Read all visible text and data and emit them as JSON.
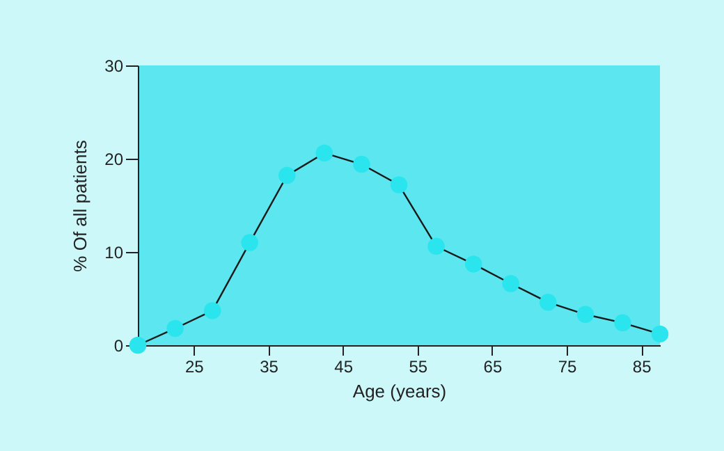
{
  "chart_data": {
    "type": "line",
    "xlabel": "Age (years)",
    "ylabel": "% Of all patients",
    "x": [
      17.5,
      22.5,
      27.5,
      32.5,
      37.5,
      42.5,
      47.5,
      52.5,
      57.5,
      62.5,
      67.5,
      72.5,
      77.5,
      82.5,
      87.5
    ],
    "series": [
      {
        "color": "#1a1a1a",
        "values": [
          0,
          1.8,
          3.7,
          11,
          18.2,
          20.6,
          19.4,
          17.2,
          10.6,
          8.7,
          6.6,
          4.6,
          3.3,
          2.4,
          1.2
        ]
      }
    ],
    "xlim": [
      17.5,
      87.5
    ],
    "xticks": [
      25,
      35,
      45,
      55,
      65,
      75,
      85
    ],
    "ylim": [
      0,
      30
    ],
    "yticks": [
      0,
      10,
      20,
      30
    ],
    "grid": false,
    "marker": "circle",
    "line_style": "solid"
  }
}
